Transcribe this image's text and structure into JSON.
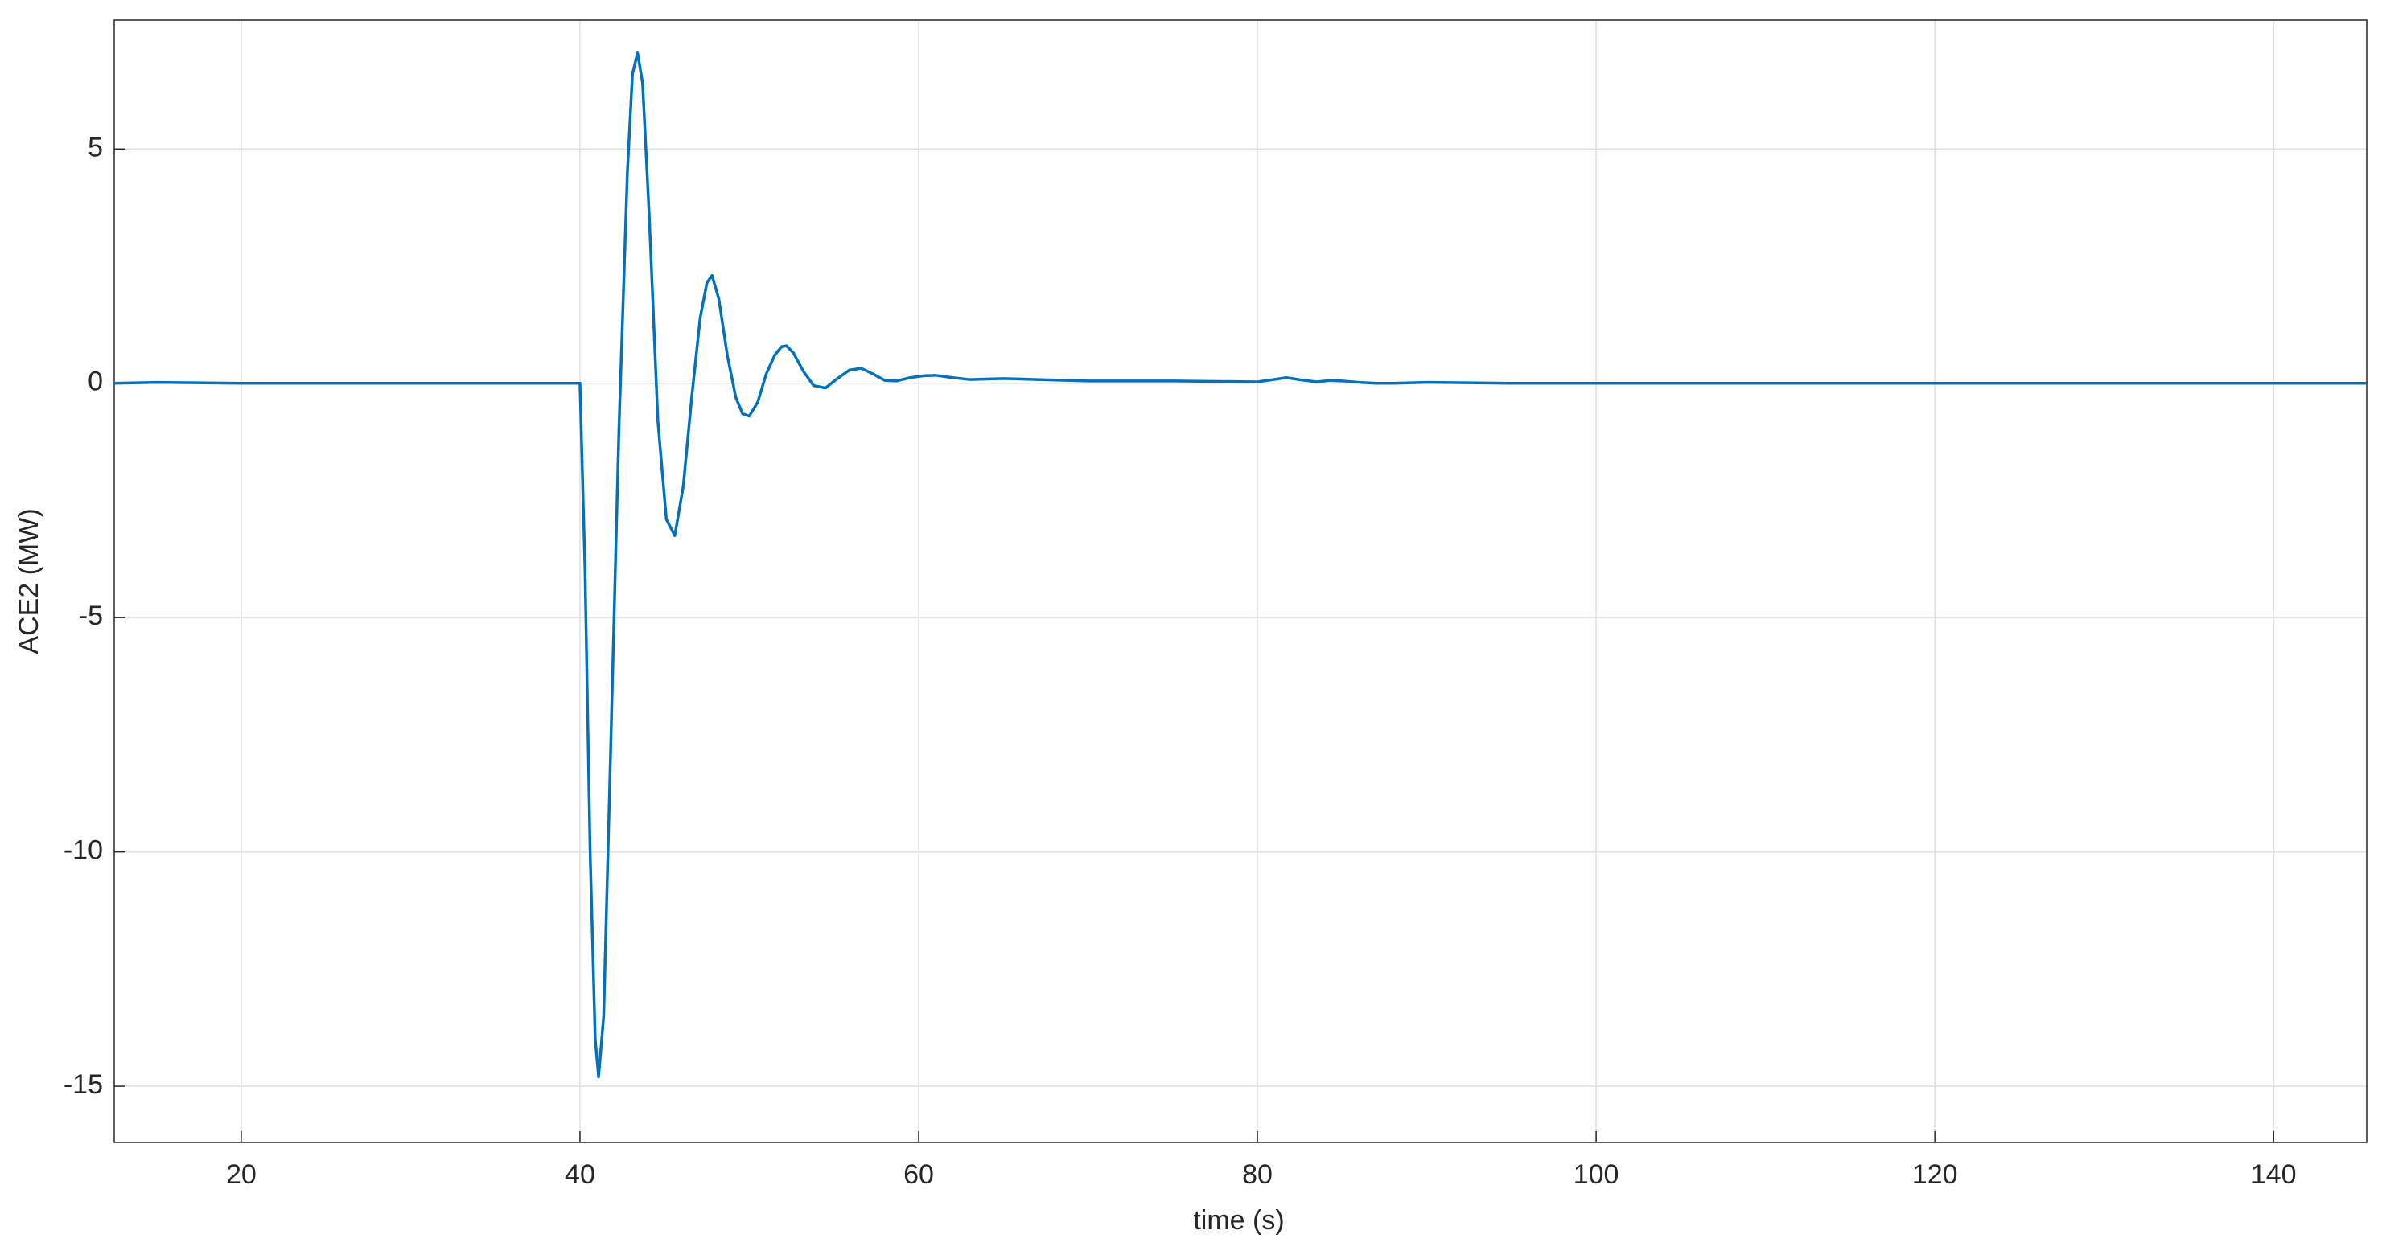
{
  "chart_data": {
    "type": "line",
    "xlabel": "time (s)",
    "ylabel": "ACE2 (MW)",
    "x": [
      12.5,
      15,
      20,
      30,
      40,
      40.3,
      40.6,
      40.9,
      41.1,
      41.4,
      41.8,
      42.3,
      42.8,
      43.1,
      43.4,
      43.7,
      44.1,
      44.6,
      45.1,
      45.6,
      46.1,
      46.6,
      47.1,
      47.5,
      47.8,
      48.2,
      48.7,
      49.2,
      49.6,
      50,
      50.5,
      51,
      51.5,
      51.9,
      52.2,
      52.6,
      53.2,
      53.8,
      54.5,
      55.2,
      55.9,
      56.6,
      57.3,
      58,
      58.7,
      59.5,
      60.3,
      61,
      62,
      63,
      64,
      65,
      67,
      70,
      75,
      80,
      80.8,
      81.7,
      82.6,
      83.5,
      84.3,
      85,
      86,
      87,
      88,
      90,
      95,
      100,
      110,
      120,
      130,
      145.5
    ],
    "series": [
      {
        "name": "ACE2",
        "color": "#0072bd",
        "values": [
          0,
          0.02,
          0,
          0,
          0,
          -4,
          -10,
          -14,
          -14.8,
          -13.5,
          -8,
          -1,
          4.5,
          6.6,
          7.05,
          6.4,
          3.5,
          -0.8,
          -2.9,
          -3.25,
          -2.2,
          -0.3,
          1.4,
          2.15,
          2.3,
          1.8,
          0.6,
          -0.3,
          -0.65,
          -0.7,
          -0.4,
          0.2,
          0.6,
          0.78,
          0.8,
          0.65,
          0.25,
          -0.05,
          -0.1,
          0.1,
          0.28,
          0.32,
          0.2,
          0.06,
          0.05,
          0.12,
          0.16,
          0.17,
          0.12,
          0.08,
          0.09,
          0.1,
          0.08,
          0.05,
          0.05,
          0.03,
          0.07,
          0.12,
          0.07,
          0.03,
          0.06,
          0.05,
          0.02,
          0,
          0,
          0.02,
          0,
          0,
          0,
          0,
          0,
          0
        ]
      }
    ],
    "xlim": [
      12.5,
      145.5
    ],
    "xticks": [
      20,
      40,
      60,
      80,
      100,
      120,
      140
    ],
    "ylim": [
      -16.2,
      7.75
    ],
    "yticks": [
      -15,
      -10,
      -5,
      0,
      5
    ],
    "grid": true
  }
}
